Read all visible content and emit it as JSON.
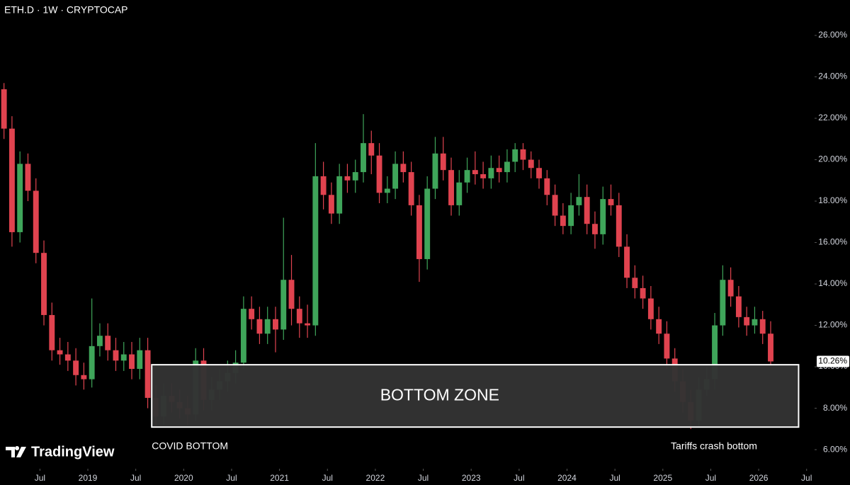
{
  "header": "ETH.D · 1W · CRYPTOCAP",
  "brand": "TradingView",
  "chart_data": {
    "type": "candlestick",
    "up_color": "#3fa55a",
    "down_color": "#e0434f",
    "x": [
      "2018-02",
      "2018-03",
      "2018-04",
      "2018-05",
      "2018-06",
      "2018-07",
      "2018-08",
      "2018-09",
      "2018-10",
      "2018-11",
      "2018-12",
      "2019-01",
      "2019-02",
      "2019-03",
      "2019-04",
      "2019-05",
      "2019-06",
      "2019-07",
      "2019-08",
      "2019-09",
      "2019-10",
      "2019-11",
      "2019-12",
      "2020-01",
      "2020-02",
      "2020-03",
      "2020-04",
      "2020-05",
      "2020-06",
      "2020-07",
      "2020-08",
      "2020-09",
      "2020-10",
      "2020-11",
      "2020-12",
      "2021-01",
      "2021-02",
      "2021-03",
      "2021-04",
      "2021-05",
      "2021-06",
      "2021-07",
      "2021-08",
      "2021-09",
      "2021-10",
      "2021-11",
      "2021-12",
      "2022-01",
      "2022-02",
      "2022-03",
      "2022-04",
      "2022-05",
      "2022-06",
      "2022-07",
      "2022-08",
      "2022-09",
      "2022-10",
      "2022-11",
      "2022-12",
      "2023-01",
      "2023-02",
      "2023-03",
      "2023-04",
      "2023-05",
      "2023-06",
      "2023-07",
      "2023-08",
      "2023-09",
      "2023-10",
      "2023-11",
      "2023-12",
      "2024-01",
      "2024-02",
      "2024-03",
      "2024-04",
      "2024-05",
      "2024-06",
      "2024-07",
      "2024-08",
      "2024-09",
      "2024-10",
      "2024-11",
      "2024-12",
      "2025-01",
      "2025-02",
      "2025-03",
      "2025-04",
      "2025-05",
      "2025-06",
      "2025-07",
      "2025-08",
      "2025-09",
      "2025-10",
      "2025-11",
      "2025-12",
      "2026-01",
      "2026-02"
    ],
    "open": [
      23.4,
      21.5,
      16.5,
      19.8,
      18.5,
      15.5,
      12.5,
      10.8,
      10.6,
      10.3,
      9.6,
      9.4,
      11.0,
      11.5,
      10.8,
      10.3,
      10.6,
      9.9,
      10.8,
      8.5,
      7.6,
      8.6,
      8.3,
      8.0,
      7.7,
      10.3,
      8.4,
      8.9,
      9.3,
      9.7,
      10.2,
      12.8,
      12.3,
      11.6,
      12.3,
      11.8,
      14.2,
      12.8,
      12.1,
      12.0,
      19.2,
      18.3,
      17.4,
      19.2,
      19.0,
      19.4,
      20.8,
      20.2,
      18.4,
      18.6,
      19.8,
      19.4,
      17.8,
      15.2,
      18.6,
      20.3,
      19.5,
      17.8,
      18.9,
      19.5,
      19.3,
      19.1,
      19.6,
      19.4,
      19.9,
      20.5,
      20.0,
      19.6,
      19.1,
      18.3,
      17.3,
      16.8,
      17.8,
      18.2,
      16.9,
      16.4,
      18.1,
      17.8,
      15.8,
      14.3,
      13.8,
      13.3,
      12.3,
      11.6,
      10.4,
      9.3,
      8.3,
      7.4,
      8.9,
      9.4,
      12.0,
      14.2,
      13.4,
      12.4,
      12.0,
      12.3,
      11.6
    ],
    "high": [
      23.7,
      22.1,
      20.4,
      20.3,
      19.1,
      16.1,
      13.1,
      11.4,
      11.2,
      10.9,
      10.2,
      13.3,
      12.1,
      12.1,
      11.4,
      11.2,
      11.2,
      11.4,
      11.4,
      9.1,
      9.2,
      9.2,
      8.9,
      8.6,
      10.9,
      10.9,
      9.5,
      9.9,
      10.3,
      10.8,
      13.4,
      13.4,
      12.9,
      12.9,
      12.9,
      17.2,
      15.4,
      13.4,
      13.0,
      20.8,
      19.9,
      18.9,
      19.8,
      19.8,
      20.0,
      22.2,
      21.4,
      20.8,
      19.2,
      20.4,
      20.4,
      19.9,
      18.3,
      19.2,
      21.1,
      21.1,
      20.1,
      19.5,
      20.1,
      20.4,
      19.9,
      20.2,
      20.2,
      20.5,
      20.8,
      20.8,
      20.4,
      20.0,
      19.5,
      18.8,
      17.9,
      18.4,
      19.3,
      18.8,
      17.5,
      18.7,
      18.8,
      18.4,
      16.4,
      14.9,
      14.4,
      13.9,
      12.9,
      12.2,
      10.9,
      9.9,
      8.9,
      9.5,
      10.0,
      12.6,
      14.9,
      14.8,
      13.9,
      12.9,
      12.9,
      12.7,
      12.2
    ],
    "low": [
      21.0,
      15.8,
      16.0,
      18.0,
      15.0,
      12.0,
      10.3,
      10.1,
      9.8,
      9.1,
      8.9,
      9.0,
      10.5,
      10.3,
      9.8,
      9.8,
      9.4,
      9.4,
      8.0,
      7.1,
      7.2,
      7.8,
      7.5,
      7.2,
      7.4,
      7.9,
      7.9,
      8.4,
      8.8,
      9.2,
      9.9,
      11.8,
      11.1,
      11.1,
      10.7,
      11.3,
      12.0,
      11.4,
      11.4,
      11.5,
      17.6,
      16.9,
      16.9,
      18.4,
      18.4,
      18.9,
      19.3,
      17.9,
      17.9,
      18.1,
      18.9,
      17.3,
      14.1,
      14.7,
      18.1,
      19.0,
      17.3,
      17.3,
      18.4,
      18.8,
      18.6,
      18.6,
      18.9,
      18.9,
      19.4,
      19.5,
      19.1,
      18.6,
      17.8,
      16.8,
      16.4,
      16.4,
      17.3,
      16.4,
      15.7,
      15.9,
      17.3,
      15.3,
      13.8,
      13.3,
      12.8,
      11.8,
      11.1,
      9.9,
      8.8,
      7.8,
      7.0,
      7.1,
      8.6,
      8.9,
      11.5,
      12.9,
      11.9,
      11.5,
      11.6,
      11.1,
      10.1
    ],
    "close": [
      21.5,
      16.5,
      19.8,
      18.5,
      15.5,
      12.5,
      10.8,
      10.6,
      10.3,
      9.6,
      9.4,
      11.0,
      11.5,
      10.8,
      10.3,
      10.6,
      9.9,
      10.8,
      8.5,
      7.6,
      8.6,
      8.3,
      8.0,
      7.7,
      10.3,
      8.4,
      8.9,
      9.3,
      9.7,
      10.2,
      12.8,
      12.3,
      11.6,
      12.3,
      11.8,
      14.2,
      12.8,
      12.1,
      12.0,
      19.2,
      18.3,
      17.4,
      19.2,
      19.0,
      19.4,
      20.8,
      20.2,
      18.4,
      18.6,
      19.8,
      19.4,
      17.8,
      15.2,
      18.6,
      20.3,
      19.5,
      17.8,
      18.9,
      19.5,
      19.3,
      19.1,
      19.6,
      19.4,
      19.9,
      20.5,
      20.0,
      19.6,
      19.1,
      18.3,
      17.3,
      16.8,
      17.8,
      18.2,
      16.9,
      16.4,
      18.1,
      17.8,
      15.8,
      14.3,
      13.8,
      13.3,
      12.3,
      11.6,
      10.4,
      9.3,
      8.3,
      7.4,
      8.9,
      9.4,
      12.0,
      14.2,
      13.4,
      12.4,
      12.0,
      12.3,
      11.6,
      10.26
    ],
    "last_close_label": "10.26%",
    "xlim": [
      "2018-02",
      "2026-08"
    ],
    "xticks": [
      {
        "value": "2018-07",
        "label": "Jul"
      },
      {
        "value": "2019-01",
        "label": "2019"
      },
      {
        "value": "2019-07",
        "label": "Jul"
      },
      {
        "value": "2020-01",
        "label": "2020"
      },
      {
        "value": "2020-07",
        "label": "Jul"
      },
      {
        "value": "2021-01",
        "label": "2021"
      },
      {
        "value": "2021-07",
        "label": "Jul"
      },
      {
        "value": "2022-01",
        "label": "2022"
      },
      {
        "value": "2022-07",
        "label": "Jul"
      },
      {
        "value": "2023-01",
        "label": "2023"
      },
      {
        "value": "2023-07",
        "label": "Jul"
      },
      {
        "value": "2024-01",
        "label": "2024"
      },
      {
        "value": "2024-07",
        "label": "Jul"
      },
      {
        "value": "2025-01",
        "label": "2025"
      },
      {
        "value": "2025-07",
        "label": "Jul"
      },
      {
        "value": "2026-01",
        "label": "2026"
      },
      {
        "value": "2026-07",
        "label": "Jul"
      }
    ],
    "ylim": [
      5.08,
      27.71
    ],
    "yticks": [
      {
        "value": 6,
        "label": "6.00%"
      },
      {
        "value": 8,
        "label": "8.00%"
      },
      {
        "value": 10,
        "label": "10.00%"
      },
      {
        "value": 12,
        "label": "12.00%"
      },
      {
        "value": 14,
        "label": "14.00%"
      },
      {
        "value": 16,
        "label": "16.00%"
      },
      {
        "value": 18,
        "label": "18.00%"
      },
      {
        "value": 20,
        "label": "20.00%"
      },
      {
        "value": 22,
        "label": "22.00%"
      },
      {
        "value": 24,
        "label": "24.00%"
      },
      {
        "value": 26,
        "label": "26.00%"
      }
    ],
    "zone": {
      "label": "BOTTOM ZONE",
      "x": [
        "2019-09",
        "2026-06"
      ],
      "y": [
        7.09,
        10.1
      ]
    },
    "annotations": [
      {
        "text": "COVID BOTTOM",
        "x": "2019-09"
      },
      {
        "text": "Tariffs crash bottom",
        "x": "2025-02"
      }
    ]
  }
}
